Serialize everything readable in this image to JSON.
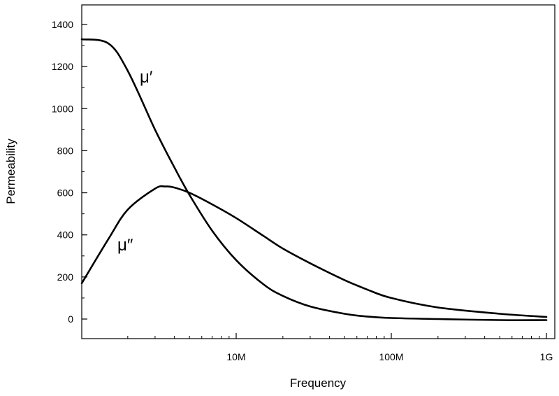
{
  "chart_data": {
    "type": "line",
    "xlabel": "Frequency",
    "ylabel": "Permeability",
    "x_scale": "log",
    "x_range_hz": [
      1000000,
      1000000000
    ],
    "x_ticks": [
      {
        "value": 10000000,
        "label": "10M"
      },
      {
        "value": 100000000,
        "label": "100M"
      },
      {
        "value": 1000000000,
        "label": "1G"
      }
    ],
    "ylim": [
      -100,
      1500
    ],
    "y_ticks": [
      0,
      200,
      400,
      600,
      800,
      1000,
      1200,
      1400
    ],
    "grid": false,
    "legend": "none",
    "line_color": "#000000",
    "series": [
      {
        "name": "μ′",
        "x": [
          1000000,
          1500000,
          2000000,
          3000000,
          4000000,
          5000000,
          7000000,
          10000000,
          15000000,
          20000000,
          30000000,
          50000000,
          70000000,
          100000000,
          200000000,
          500000000,
          1000000000
        ],
        "y": [
          1330,
          1310,
          1180,
          900,
          720,
          590,
          420,
          280,
          165,
          110,
          60,
          25,
          12,
          5,
          0,
          -5,
          -5
        ]
      },
      {
        "name": "μ″",
        "x": [
          1000000,
          1500000,
          2000000,
          3000000,
          3500000,
          4000000,
          5000000,
          7000000,
          10000000,
          15000000,
          20000000,
          30000000,
          50000000,
          70000000,
          100000000,
          200000000,
          500000000,
          1000000000
        ],
        "y": [
          170,
          380,
          520,
          620,
          630,
          625,
          600,
          545,
          480,
          395,
          335,
          265,
          185,
          140,
          100,
          55,
          25,
          10
        ]
      }
    ],
    "annotations": [
      {
        "text": "μ′",
        "series": 0
      },
      {
        "text": "μ″",
        "series": 1
      }
    ]
  }
}
